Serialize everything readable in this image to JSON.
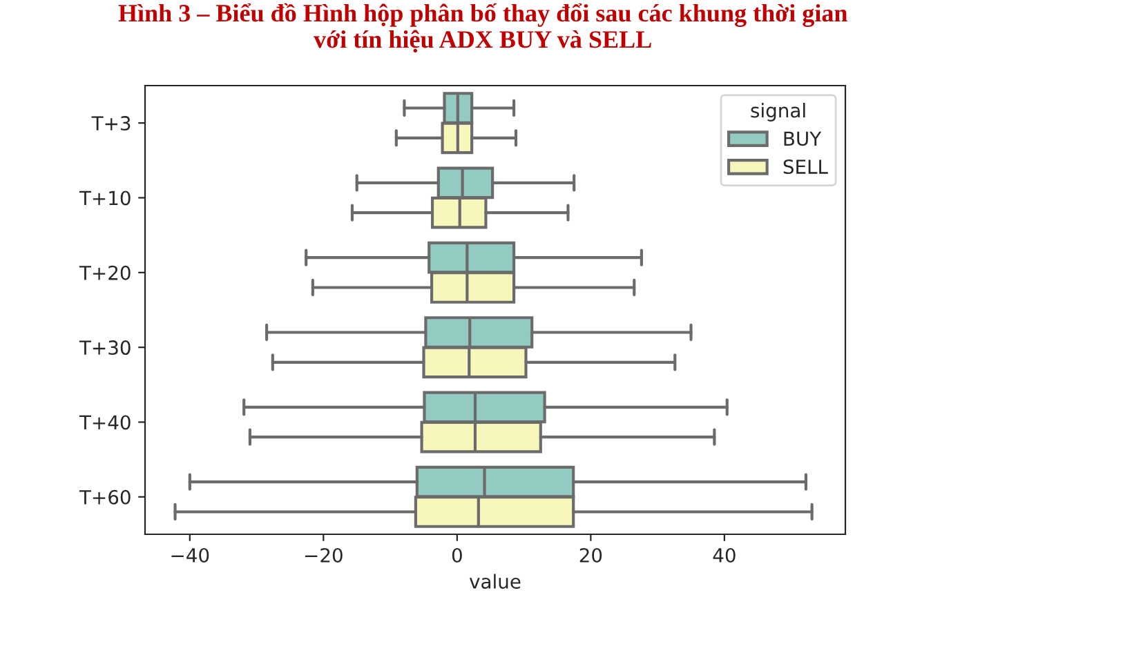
{
  "chart_data": {
    "type": "box",
    "title": "Hình 3 – Biểu đồ Hình hộp phân bố thay đổi sau các khung thời gian\nvới tín hiệu ADX BUY và SELL",
    "xlabel": "value",
    "legend_title": "signal",
    "legend": "top right",
    "orientation": "horizontal",
    "categories": [
      "T+3",
      "T+10",
      "T+20",
      "T+30",
      "T+40",
      "T+60"
    ],
    "xlim": [
      -46.7,
      58.1
    ],
    "xticks": [
      {
        "value": -40,
        "label": "−40"
      },
      {
        "value": -20,
        "label": "−20"
      },
      0,
      20,
      40
    ],
    "series": [
      {
        "name": "BUY",
        "color": "#93cbc2",
        "boxes": [
          {
            "low": -7.9,
            "q1": -1.9,
            "median": 0.1,
            "q3": 2.2,
            "high": 8.5
          },
          {
            "low": -15.0,
            "q1": -2.8,
            "median": 0.8,
            "q3": 5.3,
            "high": 17.5
          },
          {
            "low": -22.6,
            "q1": -4.2,
            "median": 1.5,
            "q3": 8.5,
            "high": 27.6
          },
          {
            "low": -28.5,
            "q1": -4.7,
            "median": 1.9,
            "q3": 11.2,
            "high": 35.0
          },
          {
            "low": -31.9,
            "q1": -4.9,
            "median": 2.7,
            "q3": 13.1,
            "high": 40.4
          },
          {
            "low": -40.0,
            "q1": -6.0,
            "median": 4.1,
            "q3": 17.4,
            "high": 52.2
          }
        ]
      },
      {
        "name": "SELL",
        "color": "#f8f7bb",
        "boxes": [
          {
            "low": -9.1,
            "q1": -2.2,
            "median": 0.1,
            "q3": 2.2,
            "high": 8.8
          },
          {
            "low": -15.7,
            "q1": -3.7,
            "median": 0.4,
            "q3": 4.3,
            "high": 16.6
          },
          {
            "low": -21.6,
            "q1": -3.8,
            "median": 1.5,
            "q3": 8.5,
            "high": 26.5
          },
          {
            "low": -27.6,
            "q1": -5.0,
            "median": 1.8,
            "q3": 10.3,
            "high": 32.6
          },
          {
            "low": -31.0,
            "q1": -5.3,
            "median": 2.7,
            "q3": 12.5,
            "high": 38.5
          },
          {
            "low": -42.2,
            "q1": -6.2,
            "median": 3.2,
            "q3": 17.4,
            "high": 53.1
          }
        ]
      }
    ]
  }
}
